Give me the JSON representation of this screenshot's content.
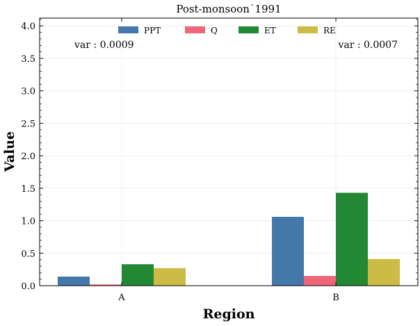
{
  "chart_data": {
    "type": "bar",
    "title": "Post-monsoon˙1991",
    "xlabel": "Region",
    "ylabel": "Value",
    "categories": [
      "A",
      "B"
    ],
    "series": [
      {
        "name": "PPT",
        "color": "#4477aa",
        "values": [
          0.14,
          1.06
        ]
      },
      {
        "name": "Q",
        "color": "#ee6677",
        "values": [
          0.02,
          0.15
        ]
      },
      {
        "name": "ET",
        "color": "#228833",
        "values": [
          0.33,
          1.43
        ]
      },
      {
        "name": "RE",
        "color": "#ccbb44",
        "values": [
          0.27,
          0.41
        ]
      }
    ],
    "ylim": [
      0,
      4.12
    ],
    "yticks": [
      "0.0",
      "0.5",
      "1.0",
      "1.5",
      "2.0",
      "2.5",
      "3.0",
      "3.5",
      "4.0"
    ],
    "grid": true,
    "legend_position": "top-center",
    "annotations": [
      "var : 0.0009",
      "var : 0.0007"
    ]
  }
}
